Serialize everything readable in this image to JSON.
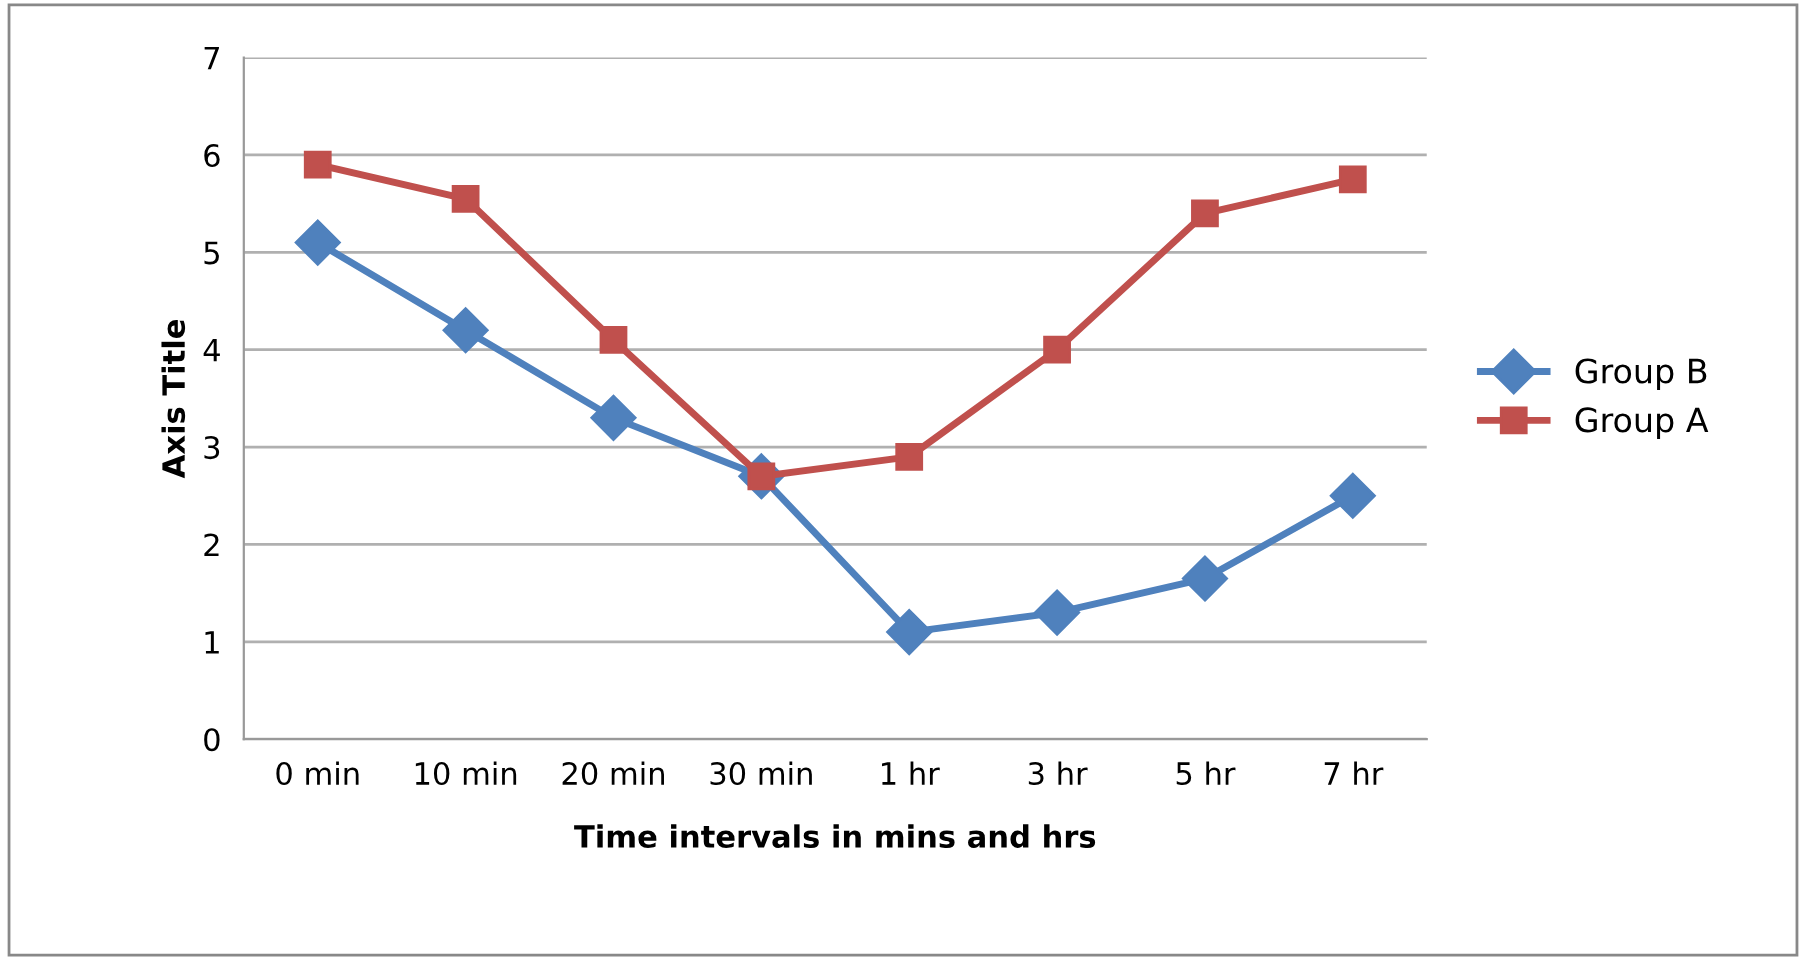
{
  "chart_data": {
    "type": "line",
    "xlabel": "Time intervals in mins and hrs",
    "ylabel": "Axis Title",
    "categories": [
      "0 min",
      "10 min",
      "20 min",
      "30 min",
      "1 hr",
      "3 hr",
      "5 hr",
      "7 hr"
    ],
    "series": [
      {
        "name": "Group B",
        "color": "#4f81bd",
        "marker": "diamond",
        "values": [
          5.1,
          4.2,
          3.3,
          2.7,
          1.1,
          1.3,
          1.65,
          2.5
        ]
      },
      {
        "name": "Group A",
        "color": "#c0504d",
        "marker": "square",
        "values": [
          5.9,
          5.55,
          4.1,
          2.7,
          2.9,
          4.0,
          5.4,
          5.75
        ]
      }
    ],
    "ylim": [
      0,
      7
    ],
    "yticks": [
      0,
      1,
      2,
      3,
      4,
      5,
      6,
      7
    ],
    "grid": "y",
    "legend": "right"
  }
}
